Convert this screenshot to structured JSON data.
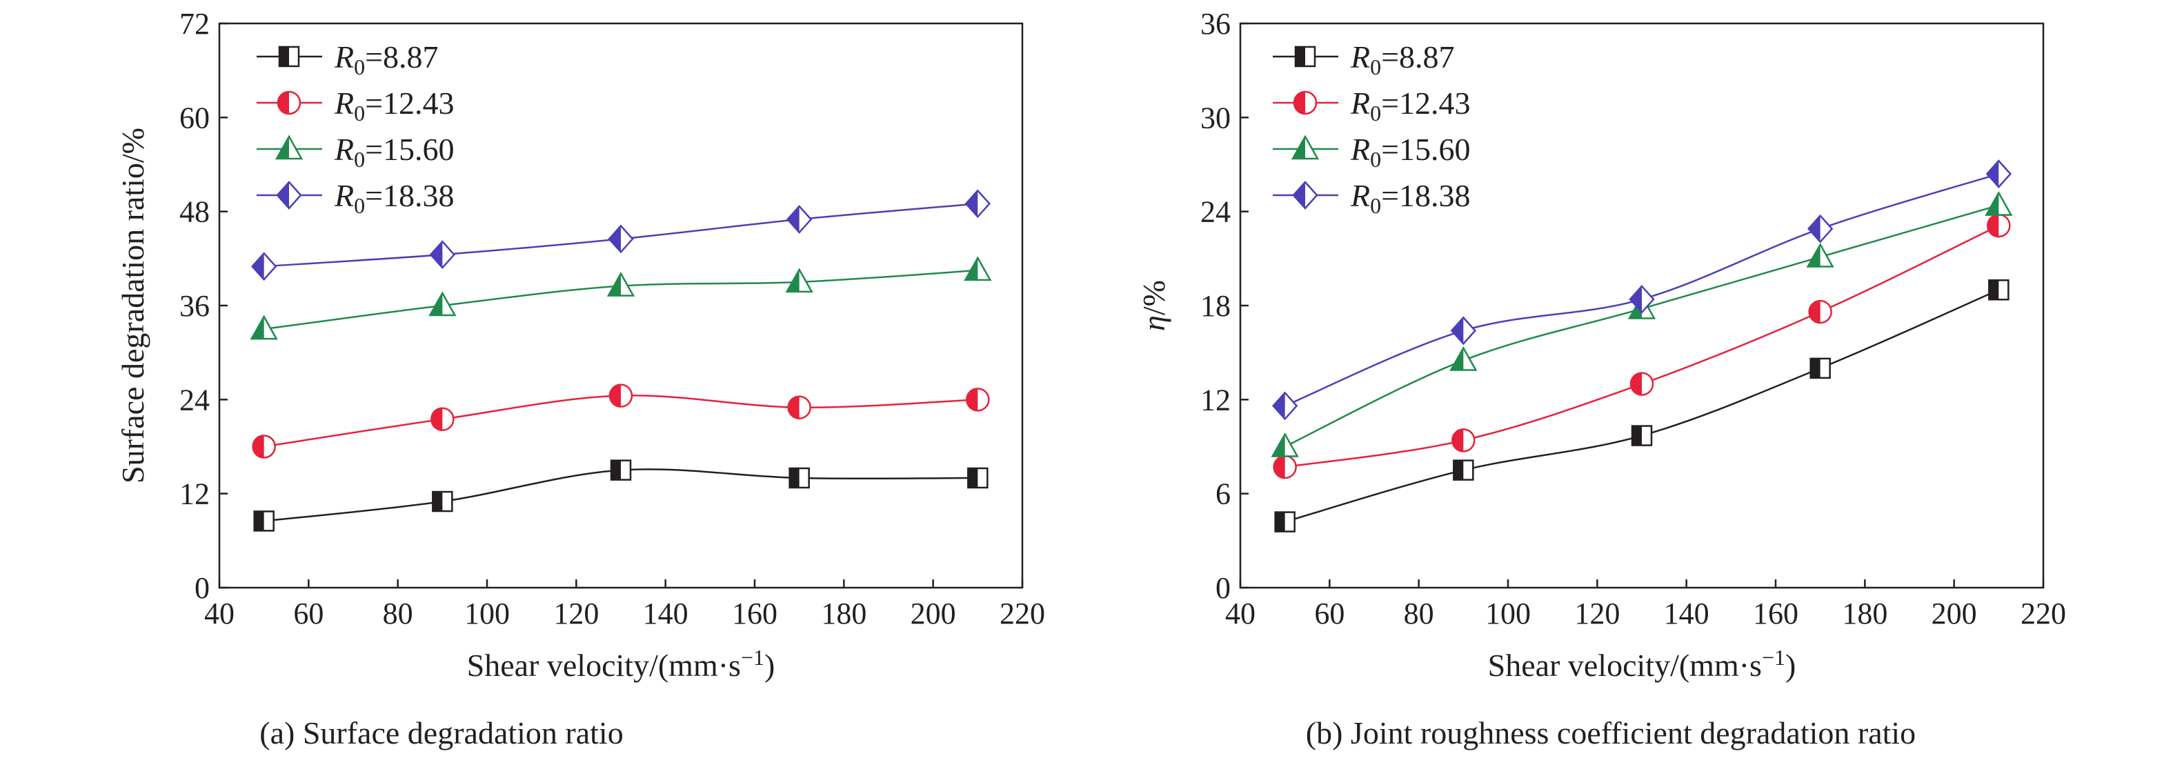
{
  "chart_data": [
    {
      "type": "line",
      "panel": "a",
      "caption": "(a) Surface degradation ratio",
      "xlabel": "Shear velocity/(mm·s⁻¹)",
      "ylabel": "Surface degradation ratio/%",
      "xlim": [
        40,
        220
      ],
      "ylim": [
        0,
        72
      ],
      "xticks": [
        40,
        60,
        80,
        100,
        120,
        140,
        160,
        180,
        200,
        220
      ],
      "yticks": [
        0,
        12,
        24,
        36,
        48,
        60,
        72
      ],
      "legend_position": "top-left",
      "grid": false,
      "x": [
        50,
        90,
        130,
        170,
        210
      ],
      "series": [
        {
          "name": "R0=8.87",
          "legend_label": {
            "var": "R",
            "sub": "0",
            "value": "=8.87"
          },
          "marker": "square",
          "color": "#231f20",
          "values": [
            8.5,
            11.0,
            15.0,
            14.0,
            14.0
          ]
        },
        {
          "name": "R0=12.43",
          "legend_label": {
            "var": "R",
            "sub": "0",
            "value": "=12.43"
          },
          "marker": "circle",
          "color": "#e8203a",
          "values": [
            18.0,
            21.5,
            24.5,
            23.0,
            24.0
          ]
        },
        {
          "name": "R0=15.60",
          "legend_label": {
            "var": "R",
            "sub": "0",
            "value": "=15.60"
          },
          "marker": "triangle",
          "color": "#1f8a4c",
          "values": [
            33.0,
            36.0,
            38.5,
            39.0,
            40.5
          ]
        },
        {
          "name": "R0=18.38",
          "legend_label": {
            "var": "R",
            "sub": "0",
            "value": "=18.38"
          },
          "marker": "diamond",
          "color": "#4a3fb8",
          "values": [
            41.0,
            42.5,
            44.5,
            47.0,
            49.0
          ]
        }
      ]
    },
    {
      "type": "line",
      "panel": "b",
      "caption": "(b) Joint roughness coefficient degradation ratio",
      "xlabel": "Shear velocity/(mm·s⁻¹)",
      "ylabel": "η/%",
      "xlim": [
        40,
        220
      ],
      "ylim": [
        0,
        36
      ],
      "xticks": [
        40,
        60,
        80,
        100,
        120,
        140,
        160,
        180,
        200,
        220
      ],
      "yticks": [
        0,
        6,
        12,
        18,
        24,
        30,
        36
      ],
      "legend_position": "top-left",
      "grid": false,
      "x": [
        50,
        90,
        130,
        170,
        210
      ],
      "series": [
        {
          "name": "R0=8.87",
          "legend_label": {
            "var": "R",
            "sub": "0",
            "value": "=8.87"
          },
          "marker": "square",
          "color": "#231f20",
          "values": [
            4.2,
            7.5,
            9.7,
            14.0,
            19.0
          ]
        },
        {
          "name": "R0=12.43",
          "legend_label": {
            "var": "R",
            "sub": "0",
            "value": "=12.43"
          },
          "marker": "circle",
          "color": "#e8203a",
          "values": [
            7.7,
            9.4,
            13.0,
            17.6,
            23.1
          ]
        },
        {
          "name": "R0=15.60",
          "legend_label": {
            "var": "R",
            "sub": "0",
            "value": "=15.60"
          },
          "marker": "triangle",
          "color": "#1f8a4c",
          "values": [
            9.0,
            14.5,
            17.8,
            21.1,
            24.4
          ]
        },
        {
          "name": "R0=18.38",
          "legend_label": {
            "var": "R",
            "sub": "0",
            "value": "=18.38"
          },
          "marker": "diamond",
          "color": "#4a3fb8",
          "values": [
            11.6,
            16.4,
            18.4,
            22.9,
            26.4
          ]
        }
      ]
    }
  ]
}
